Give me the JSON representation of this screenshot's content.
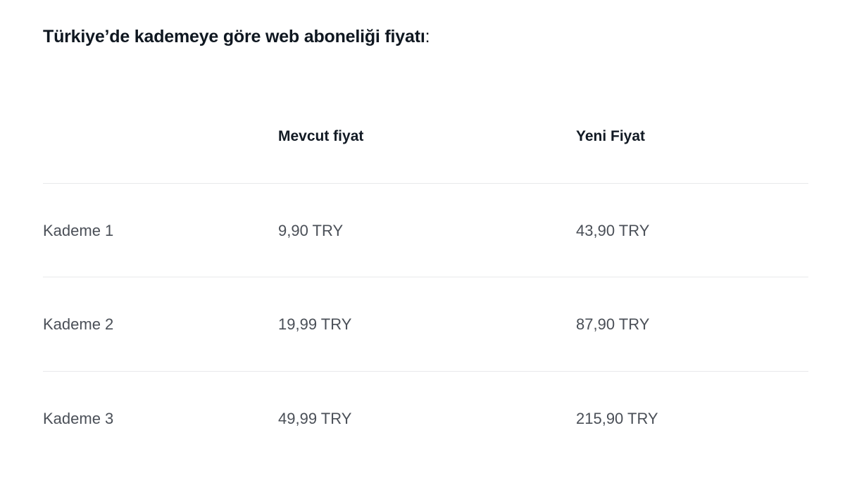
{
  "title": "Türkiye’de kademeye göre web aboneliği fiyatı",
  "title_suffix": ":",
  "table": {
    "headers": [
      "",
      "Mevcut fiyat",
      "Yeni Fiyat"
    ],
    "rows": [
      [
        "Kademe 1",
        "9,90 TRY",
        "43,90 TRY"
      ],
      [
        "Kademe 2",
        "19,99 TRY",
        "87,90 TRY"
      ],
      [
        "Kademe 3",
        "49,99 TRY",
        "215,90 TRY"
      ]
    ]
  }
}
